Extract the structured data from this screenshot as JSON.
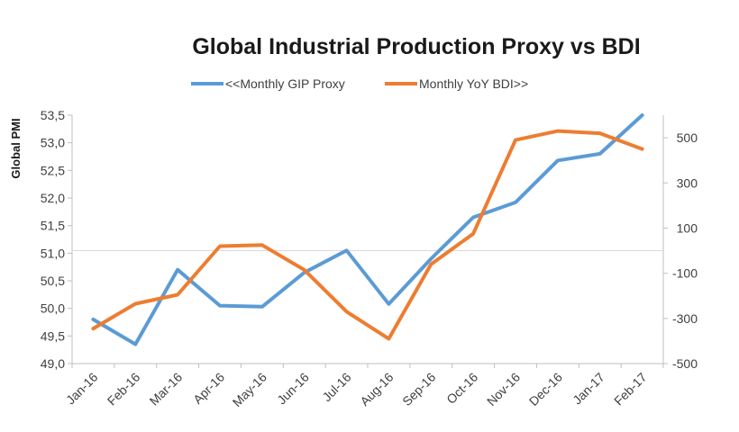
{
  "chart_data": {
    "type": "line",
    "title": "Global Industrial Production Proxy vs BDI",
    "ylabel_left": "Global PMI",
    "ylabel_right": "",
    "categories": [
      "Jan-16",
      "Feb-16",
      "Mar-16",
      "Apr-16",
      "May-16",
      "Jun-16",
      "Jul-16",
      "Aug-16",
      "Sep-16",
      "Oct-16",
      "Nov-16",
      "Dec-16",
      "Jan-17",
      "Feb-17"
    ],
    "y_left": {
      "min": 49.0,
      "max": 53.5,
      "step": 0.5,
      "tick_labels": [
        "49,0",
        "49,5",
        "50,0",
        "50,5",
        "51,0",
        "51,5",
        "52,0",
        "52,5",
        "53,0",
        "53,5"
      ]
    },
    "y_right": {
      "min": -500,
      "max": 600,
      "tick_values": [
        -500,
        -300,
        -100,
        100,
        300,
        500
      ],
      "tick_labels": [
        "-500",
        "-300",
        "-100",
        "100",
        "300",
        "500"
      ]
    },
    "grid": false,
    "legend_position": "top",
    "series": [
      {
        "name": "<<Monthly GIP Proxy",
        "axis": "left",
        "color": "#5b9bd5",
        "values": [
          49.8,
          49.35,
          50.7,
          50.05,
          50.03,
          50.65,
          51.05,
          50.08,
          50.9,
          51.65,
          51.92,
          52.68,
          52.8,
          53.5
        ]
      },
      {
        "name": "Monthly YoY BDI>>",
        "axis": "right",
        "color": "#ed7d31",
        "values": [
          -345,
          -235,
          -195,
          20,
          25,
          -85,
          -270,
          -390,
          -60,
          75,
          490,
          530,
          520,
          450
        ]
      }
    ]
  }
}
